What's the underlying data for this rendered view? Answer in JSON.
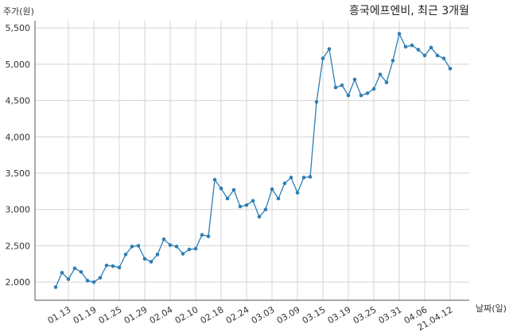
{
  "chart_data": {
    "type": "line",
    "title": "흥국에프엔비, 최근 3개월",
    "xlabel": "날짜(일)",
    "ylabel": "주가(원)",
    "ylim": [
      1750,
      5600
    ],
    "yticks": [
      2000,
      2500,
      3000,
      3500,
      4000,
      4500,
      5000,
      5500
    ],
    "ytick_labels": [
      "2,000",
      "2,500",
      "3,000",
      "3,500",
      "4,000",
      "4,500",
      "5,000",
      "5,500"
    ],
    "grid": true,
    "line_color": "#2e7eb4",
    "x": [
      "01.11",
      "01.12",
      "01.13",
      "01.14",
      "01.15",
      "01.18",
      "01.19",
      "01.20",
      "01.21",
      "01.22",
      "01.25",
      "01.26",
      "01.27",
      "01.28",
      "01.29",
      "02.01",
      "02.02",
      "02.03",
      "02.04",
      "02.05",
      "02.08",
      "02.09",
      "02.10",
      "02.15",
      "02.16",
      "02.17",
      "02.18",
      "02.19",
      "02.22",
      "02.23",
      "02.24",
      "02.25",
      "02.26",
      "03.02",
      "03.03",
      "03.04",
      "03.05",
      "03.08",
      "03.09",
      "03.10",
      "03.11",
      "03.12",
      "03.15",
      "03.16",
      "03.17",
      "03.18",
      "03.19",
      "03.22",
      "03.23",
      "03.24",
      "03.25",
      "03.26",
      "03.29",
      "03.30",
      "03.31",
      "04.01",
      "04.02",
      "04.05",
      "04.06",
      "04.07",
      "04.08",
      "04.09",
      "04.12"
    ],
    "xticks": [
      "01.13",
      "01.19",
      "01.25",
      "01.29",
      "02.04",
      "02.10",
      "02.18",
      "02.24",
      "03.03",
      "03.09",
      "03.15",
      "03.19",
      "03.25",
      "03.31",
      "04.06",
      "21.04.12"
    ],
    "xtick_index": [
      2,
      6,
      10,
      14,
      18,
      22,
      26,
      30,
      34,
      38,
      42,
      46,
      50,
      54,
      58,
      62
    ],
    "series": [
      {
        "values": [
          1930,
          2130,
          2040,
          2190,
          2140,
          2020,
          2000,
          2060,
          2230,
          2220,
          2200,
          2380,
          2490,
          2500,
          2320,
          2280,
          2380,
          2590,
          2510,
          2490,
          2390,
          2450,
          2460,
          2650,
          2630,
          3410,
          3290,
          3150,
          3270,
          3040,
          3060,
          3120,
          2900,
          3000,
          3280,
          3150,
          3360,
          3440,
          3230,
          3440,
          3450,
          4480,
          5080,
          5210,
          4680,
          4710,
          4570,
          4790,
          4570,
          4600,
          4660,
          4860,
          4750,
          5050,
          5420,
          5240,
          5260,
          5200,
          5120,
          5230,
          5120,
          5080,
          4940
        ]
      }
    ]
  }
}
